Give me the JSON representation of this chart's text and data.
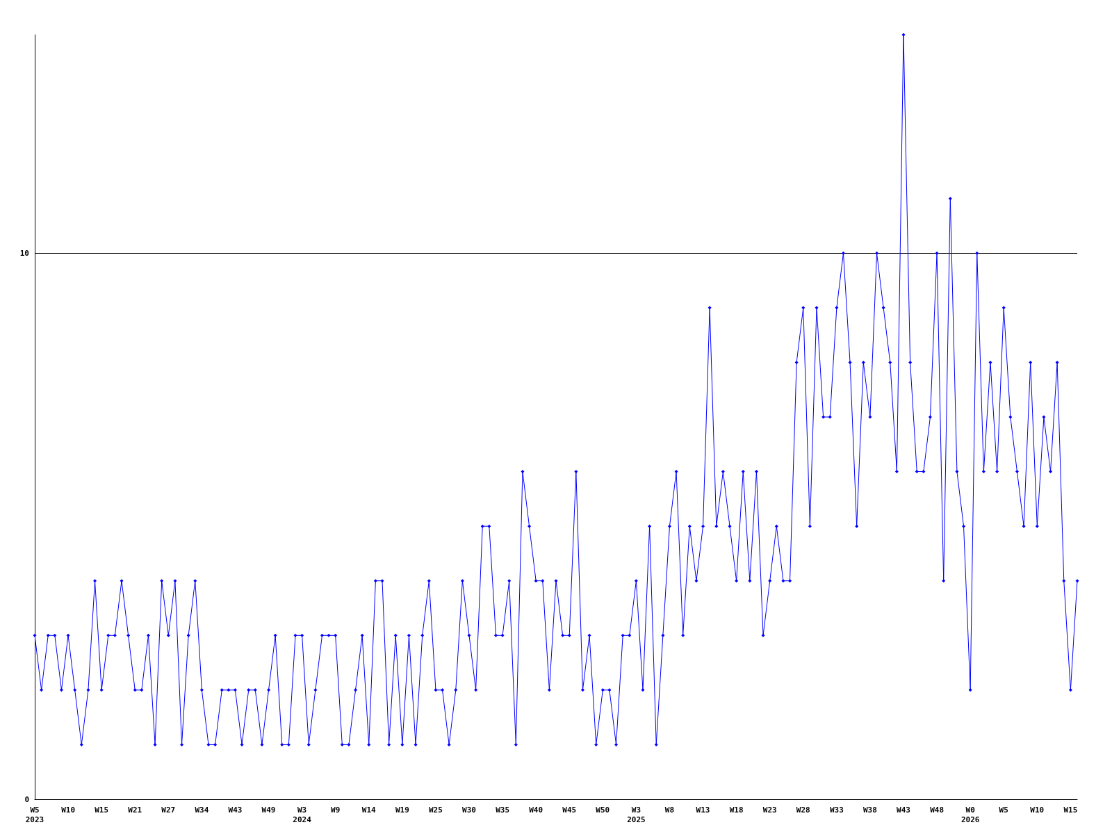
{
  "chart_data": {
    "type": "line",
    "categories": [
      "W5\n2023",
      null,
      null,
      null,
      null,
      "W10",
      null,
      null,
      null,
      null,
      "W15",
      null,
      null,
      null,
      null,
      "W21",
      null,
      null,
      null,
      null,
      "W27",
      null,
      null,
      null,
      null,
      "W34",
      null,
      null,
      null,
      null,
      "W43",
      null,
      null,
      null,
      null,
      "W49",
      null,
      null,
      null,
      null,
      "W3\n2024",
      null,
      null,
      null,
      null,
      "W9",
      null,
      null,
      null,
      null,
      "W14",
      null,
      null,
      null,
      null,
      "W19",
      null,
      null,
      null,
      null,
      "W25",
      null,
      null,
      null,
      null,
      "W30",
      null,
      null,
      null,
      null,
      "W35",
      null,
      null,
      null,
      null,
      "W40",
      null,
      null,
      null,
      null,
      "W45",
      null,
      null,
      null,
      null,
      "W50",
      null,
      null,
      null,
      null,
      "W3\n2025",
      null,
      null,
      null,
      null,
      "W8",
      null,
      null,
      null,
      null,
      "W13",
      null,
      null,
      null,
      null,
      "W18",
      null,
      null,
      null,
      null,
      "W23",
      null,
      null,
      null,
      null,
      "W28",
      null,
      null,
      null,
      null,
      "W33",
      null,
      null,
      null,
      null,
      "W38",
      null,
      null,
      null,
      null,
      "W43",
      null,
      null,
      null,
      null,
      "W48",
      null,
      null,
      null,
      null,
      "W0\n2026",
      null,
      null,
      null,
      null,
      "W5",
      null,
      null,
      null,
      null,
      "W10",
      null,
      null,
      null,
      null,
      "W15",
      null
    ],
    "series": [
      {
        "color": "#0000ff",
        "values": [
          3,
          2,
          3,
          3,
          2,
          3,
          2,
          1,
          2,
          4,
          2,
          3,
          3,
          4,
          3,
          2,
          2,
          3,
          1,
          4,
          3,
          4,
          1,
          3,
          4,
          2,
          1,
          1,
          2,
          2,
          2,
          1,
          2,
          2,
          1,
          2,
          3,
          1,
          1,
          3,
          3,
          1,
          2,
          3,
          3,
          3,
          1,
          1,
          2,
          3,
          1,
          4,
          4,
          1,
          3,
          1,
          3,
          1,
          3,
          4,
          2,
          2,
          1,
          2,
          4,
          3,
          2,
          5,
          5,
          3,
          3,
          4,
          1,
          6,
          5,
          4,
          4,
          2,
          4,
          3,
          3,
          6,
          2,
          3,
          1,
          2,
          2,
          1,
          3,
          3,
          4,
          2,
          5,
          1,
          3,
          5,
          6,
          3,
          5,
          4,
          5,
          9,
          5,
          6,
          5,
          4,
          6,
          4,
          6,
          3,
          4,
          5,
          4,
          4,
          8,
          9,
          5,
          9,
          7,
          7,
          9,
          10,
          8,
          5,
          8,
          7,
          10,
          9,
          8,
          6,
          14,
          8,
          6,
          6,
          7,
          10,
          4,
          11,
          6,
          5,
          2,
          10,
          6,
          8,
          6,
          9,
          7,
          6,
          5,
          8,
          5,
          7,
          6,
          8,
          4,
          2,
          4
        ]
      }
    ],
    "ylim": [
      0,
      14
    ],
    "yticks": [
      0,
      10
    ],
    "grid": "y",
    "marker": "diamond",
    "line_style": "solid"
  }
}
